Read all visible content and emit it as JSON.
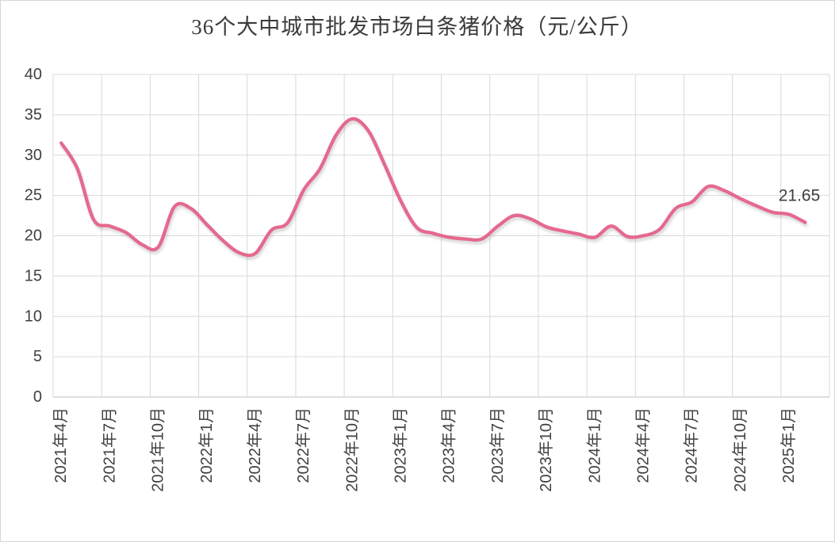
{
  "title": "36个大中城市批发市场白条猪价格（元/公斤）",
  "chart_data": {
    "type": "line",
    "title": "36个大中城市批发市场白条猪价格（元/公斤）",
    "unit": "元/公斤",
    "series_name": "白条猪价格",
    "x_months": [
      "2021-04",
      "2021-05",
      "2021-06",
      "2021-07",
      "2021-08",
      "2021-09",
      "2021-10",
      "2021-11",
      "2021-12",
      "2022-01",
      "2022-02",
      "2022-03",
      "2022-04",
      "2022-05",
      "2022-06",
      "2022-07",
      "2022-08",
      "2022-09",
      "2022-10",
      "2022-11",
      "2022-12",
      "2023-01",
      "2023-02",
      "2023-03",
      "2023-04",
      "2023-05",
      "2023-06",
      "2023-07",
      "2023-08",
      "2023-09",
      "2023-10",
      "2023-11",
      "2023-12",
      "2024-01",
      "2024-02",
      "2024-03",
      "2024-04",
      "2024-05",
      "2024-06",
      "2024-07",
      "2024-08",
      "2024-09",
      "2024-10",
      "2024-11",
      "2024-12",
      "2025-01",
      "2025-02"
    ],
    "values": [
      31.5,
      28.3,
      22.0,
      21.2,
      20.4,
      18.9,
      18.6,
      23.6,
      23.4,
      21.4,
      19.4,
      17.9,
      17.8,
      20.7,
      21.6,
      25.7,
      28.3,
      32.5,
      34.5,
      33.0,
      28.8,
      24.3,
      21.0,
      20.3,
      19.8,
      19.6,
      19.6,
      21.2,
      22.5,
      22.1,
      21.1,
      20.6,
      20.2,
      19.8,
      21.2,
      19.9,
      20.0,
      20.8,
      23.4,
      24.2,
      26.1,
      25.6,
      24.6,
      23.7,
      22.9,
      22.65,
      21.65
    ],
    "x_tick_labels": [
      "2021年4月",
      "2021年7月",
      "2021年10月",
      "2022年1月",
      "2022年4月",
      "2022年7月",
      "2022年10月",
      "2023年1月",
      "2023年4月",
      "2023年7月",
      "2023年10月",
      "2024年1月",
      "2024年4月",
      "2024年7月",
      "2024年10月",
      "2025年1月"
    ],
    "y_ticks": [
      0,
      5,
      10,
      15,
      20,
      25,
      30,
      35,
      40
    ],
    "ylim": [
      0,
      40
    ],
    "end_label": "21.65",
    "grid": "on",
    "legend": "none",
    "line_color": "#e5698e",
    "grid_color": "#d9d9d9",
    "axis_color": "#bfbfbf",
    "text_color": "#404040"
  }
}
